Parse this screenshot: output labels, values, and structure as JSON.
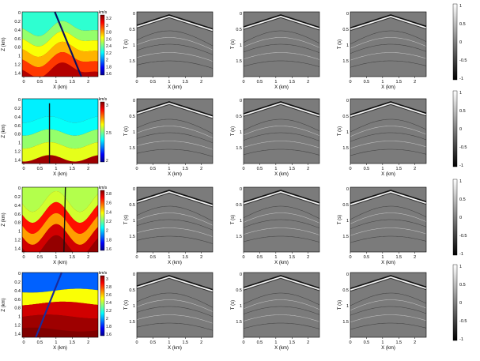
{
  "figure": {
    "rows": [
      {
        "model": {
          "xlabel": "X (km)",
          "ylabel": "Z (km)",
          "x_ticks": [
            "0",
            "0.5",
            "1",
            "1.5",
            "2"
          ],
          "z_ticks": [
            "0",
            "0.2",
            "0.4",
            "0.6",
            "0.8",
            "1",
            "1.2",
            "1.4"
          ],
          "colorbar": {
            "unit": "km/s",
            "ticks": [
              "3.2",
              "3",
              "2.8",
              "2.6",
              "2.4",
              "2.2",
              "2",
              "1.8",
              "1.6"
            ],
            "range": [
              1.5,
              3.3
            ]
          },
          "geometry": "folded layers with dipping fault",
          "line_color": "#0a1060"
        },
        "gathers": [
          {
            "xlabel": "X (km)",
            "ylabel": "T (s)",
            "x_ticks": [
              "0",
              "0.5",
              "1",
              "1.5",
              "2"
            ],
            "t_ticks": [
              "0",
              "0.5",
              "1",
              "1.5"
            ],
            "source_x": 1.0
          },
          {
            "xlabel": "X (km)",
            "ylabel": "T (s)",
            "x_ticks": [
              "0",
              "0.5",
              "1",
              "1.5",
              "2"
            ],
            "t_ticks": [
              "0",
              "0.5",
              "1",
              "1.5"
            ],
            "source_x": 1.15
          },
          {
            "xlabel": "X (km)",
            "ylabel": "T (s)",
            "x_ticks": [
              "0",
              "0.5",
              "1",
              "1.5",
              "2"
            ],
            "t_ticks": [
              "0",
              "0.5",
              "1",
              "1.5"
            ],
            "source_x": 1.25
          }
        ],
        "amp_colorbar": {
          "ticks": [
            "1",
            "0.5",
            "0",
            "-0.5",
            "-1"
          ]
        }
      },
      {
        "model": {
          "xlabel": "X (km)",
          "ylabel": "Z (km)",
          "x_ticks": [
            "0",
            "0.5",
            "1",
            "1.5",
            "2"
          ],
          "z_ticks": [
            "0",
            "0.2",
            "0.4",
            "0.6",
            "0.8",
            "1",
            "1.2",
            "1.4"
          ],
          "colorbar": {
            "unit": "km/s",
            "ticks": [
              "3",
              "2.5",
              "2"
            ],
            "range": [
              1.8,
              3.2
            ]
          },
          "geometry": "layers with vertical fault",
          "line_color": "#111111"
        },
        "gathers": [
          {
            "xlabel": "X (km)",
            "ylabel": "T (s)",
            "x_ticks": [
              "0",
              "0.5",
              "1",
              "1.5",
              "2"
            ],
            "t_ticks": [
              "0",
              "0.5",
              "1",
              "1.5"
            ],
            "source_x": 1.0
          },
          {
            "xlabel": "X (km)",
            "ylabel": "T (s)",
            "x_ticks": [
              "0",
              "0.5",
              "1",
              "1.5",
              "2"
            ],
            "t_ticks": [
              "0",
              "0.5",
              "1",
              "1.5"
            ],
            "source_x": 1.15
          },
          {
            "xlabel": "X (km)",
            "ylabel": "T (s)",
            "x_ticks": [
              "0",
              "0.5",
              "1",
              "1.5",
              "2"
            ],
            "t_ticks": [
              "0",
              "0.5",
              "1",
              "1.5"
            ],
            "source_x": 1.25
          }
        ],
        "amp_colorbar": {
          "ticks": [
            "1",
            "0.5",
            "0",
            "-0.5",
            "-1"
          ]
        }
      },
      {
        "model": {
          "xlabel": "X (km)",
          "ylabel": "Z (km)",
          "x_ticks": [
            "0",
            "0.5",
            "1",
            "1.5",
            "2"
          ],
          "z_ticks": [
            "0",
            "0.2",
            "0.4",
            "0.6",
            "0.8",
            "1",
            "1.2",
            "1.4"
          ],
          "colorbar": {
            "unit": "km/s",
            "ticks": [
              "2.8",
              "2.6",
              "2.4",
              "2.2",
              "2",
              "1.8",
              "1.6"
            ],
            "range": [
              1.5,
              2.9
            ]
          },
          "geometry": "tight folds with steep fault",
          "line_color": "#111111"
        },
        "gathers": [
          {
            "xlabel": "X (km)",
            "ylabel": "T (s)",
            "x_ticks": [
              "0",
              "0.5",
              "1",
              "1.5",
              "2"
            ],
            "t_ticks": [
              "0",
              "0.5",
              "1",
              "1.5"
            ],
            "source_x": 1.0
          },
          {
            "xlabel": "X (km)",
            "ylabel": "T (s)",
            "x_ticks": [
              "0",
              "0.5",
              "1",
              "1.5",
              "2"
            ],
            "t_ticks": [
              "0",
              "0.5",
              "1",
              "1.5"
            ],
            "source_x": 1.15
          },
          {
            "xlabel": "X (km)",
            "ylabel": "T (s)",
            "x_ticks": [
              "0",
              "0.5",
              "1",
              "1.5",
              "2"
            ],
            "t_ticks": [
              "0",
              "0.5",
              "1",
              "1.5"
            ],
            "source_x": 1.25
          }
        ],
        "amp_colorbar": {
          "ticks": [
            "1",
            "0.5",
            "0",
            "-0.5",
            "-1"
          ]
        }
      },
      {
        "model": {
          "xlabel": "X (km)",
          "ylabel": "Z (km)",
          "x_ticks": [
            "0",
            "0.5",
            "1",
            "1.5",
            "2"
          ],
          "z_ticks": [
            "0",
            "0.2",
            "0.4",
            "0.6",
            "0.8",
            "1",
            "1.2",
            "1.4"
          ],
          "colorbar": {
            "unit": "km/s",
            "ticks": [
              "3",
              "2.8",
              "2.6",
              "2.4",
              "2.2",
              "2",
              "1.8",
              "1.6"
            ],
            "range": [
              1.5,
              3.1
            ]
          },
          "geometry": "gentle layers with dipping fault",
          "line_color": "#1a2a9a"
        },
        "gathers": [
          {
            "xlabel": "X (km)",
            "ylabel": "T (s)",
            "x_ticks": [
              "0",
              "0.5",
              "1",
              "1.5",
              "2"
            ],
            "t_ticks": [
              "0",
              "0.5",
              "1",
              "1.5"
            ],
            "source_x": 1.0
          },
          {
            "xlabel": "X (km)",
            "ylabel": "T (s)",
            "x_ticks": [
              "0",
              "0.5",
              "1",
              "1.5",
              "2"
            ],
            "t_ticks": [
              "0",
              "0.5",
              "1",
              "1.5"
            ],
            "source_x": 1.15
          },
          {
            "xlabel": "X (km)",
            "ylabel": "T (s)",
            "x_ticks": [
              "0",
              "0.5",
              "1",
              "1.5",
              "2"
            ],
            "t_ticks": [
              "0",
              "0.5",
              "1",
              "1.5"
            ],
            "source_x": 1.25
          }
        ],
        "amp_colorbar": {
          "ticks": [
            "1",
            "0.5",
            "0",
            "-0.5",
            "-1"
          ]
        }
      }
    ]
  }
}
